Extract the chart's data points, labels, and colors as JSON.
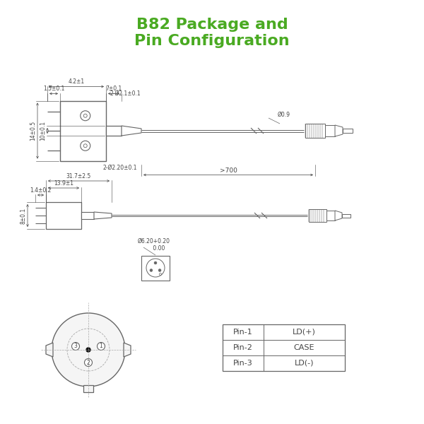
{
  "title_line1": "B82 Package and",
  "title_line2": "Pin Configuration",
  "title_color": "#4aaa22",
  "title_fontsize": 16,
  "bg_color": "#ffffff",
  "line_color": "#666666",
  "dim_color": "#444444",
  "pin_table": {
    "pins": [
      "Pin-1",
      "Pin-2",
      "Pin-3"
    ],
    "labels": [
      "LD(+)",
      "CASE",
      "LD(-)"
    ]
  },
  "dims_top": {
    "width1": "1.5±0.1",
    "width2": "4.2±1",
    "width3": "7±0.1",
    "hole": "2-Ø2.1±0.1",
    "hole2": "2-Ø2.20±0.1",
    "height1": "14±0.5",
    "height2": "10±0.1",
    "cable_len": ">700",
    "fiber_dia": "Ø0.9"
  },
  "dims_bot": {
    "width1": "1.4±0.2",
    "width2": "13.9±1",
    "width3": "31.7±2.5",
    "height1": "8±0.1",
    "connector_dia": "Ø6.20+0.20\n         0.00"
  }
}
